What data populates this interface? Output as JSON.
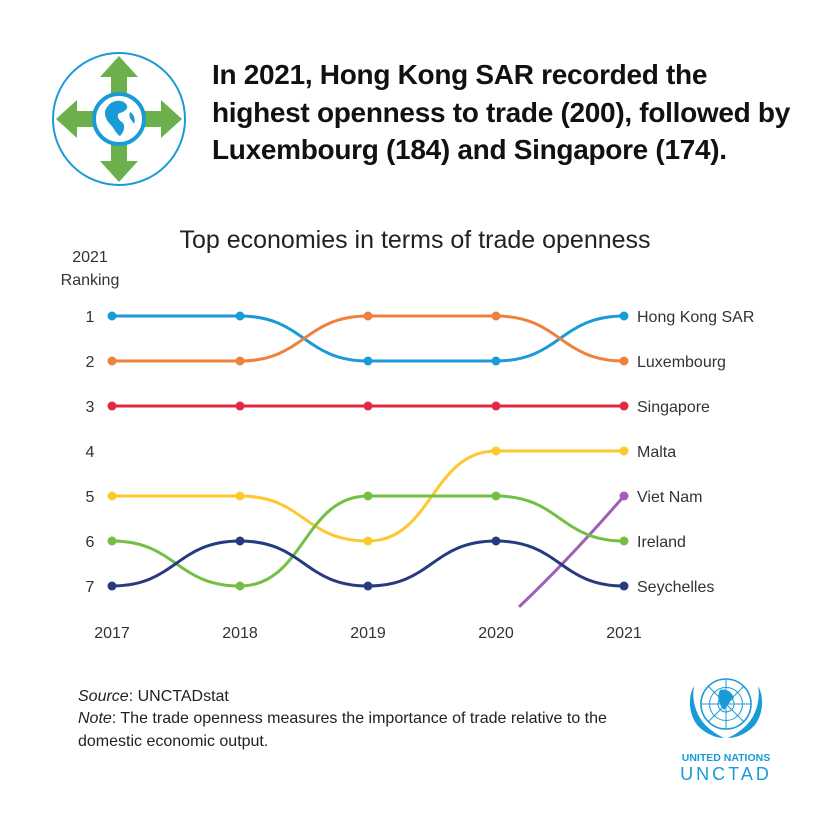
{
  "headline": "In 2021, Hong Kong SAR recorded the highest openness to trade (200), followed by Luxembourg (184) and Singapore (174).",
  "rank_header": {
    "line1": "2021",
    "line2": "Ranking"
  },
  "footer": {
    "source_label": "Source",
    "source_text": ": UNCTADstat",
    "note_label": "Note",
    "note_text": ": The trade openness measures the importance of trade relative to the domestic economic output."
  },
  "un_logo": {
    "line1": "UNITED NATIONS",
    "line2": "UNCTAD"
  },
  "icons": {
    "trade_logo": "globe-with-arrows-icon",
    "un_emblem": "un-emblem-icon"
  },
  "chart_data": {
    "type": "line",
    "title": "Top economies in terms of trade openness",
    "x": [
      "2017",
      "2018",
      "2019",
      "2020",
      "2021"
    ],
    "y_ticks": [
      "1",
      "2",
      "3",
      "4",
      "5",
      "6",
      "7"
    ],
    "y_axis": "rank, 1 at top, 7 at bottom",
    "grid": false,
    "series": [
      {
        "name": "Hong Kong SAR",
        "color": "#1a9bd7",
        "values": [
          1,
          1,
          2,
          2,
          1
        ]
      },
      {
        "name": "Luxembourg",
        "color": "#f0803c",
        "values": [
          2,
          2,
          1,
          1,
          2
        ]
      },
      {
        "name": "Singapore",
        "color": "#e6263f",
        "values": [
          3,
          3,
          3,
          3,
          3
        ]
      },
      {
        "name": "Malta",
        "color": "#fdc82f",
        "values": [
          5,
          5,
          6,
          4,
          4
        ]
      },
      {
        "name": "Viet Nam",
        "color": "#a05eb5",
        "values": [
          null,
          null,
          null,
          null,
          5
        ],
        "entry_from_below": true
      },
      {
        "name": "Ireland",
        "color": "#72bf44",
        "values": [
          6,
          7,
          5,
          5,
          6
        ]
      },
      {
        "name": "Seychelles",
        "color": "#253b7e",
        "values": [
          7,
          6,
          7,
          6,
          7
        ]
      }
    ]
  }
}
